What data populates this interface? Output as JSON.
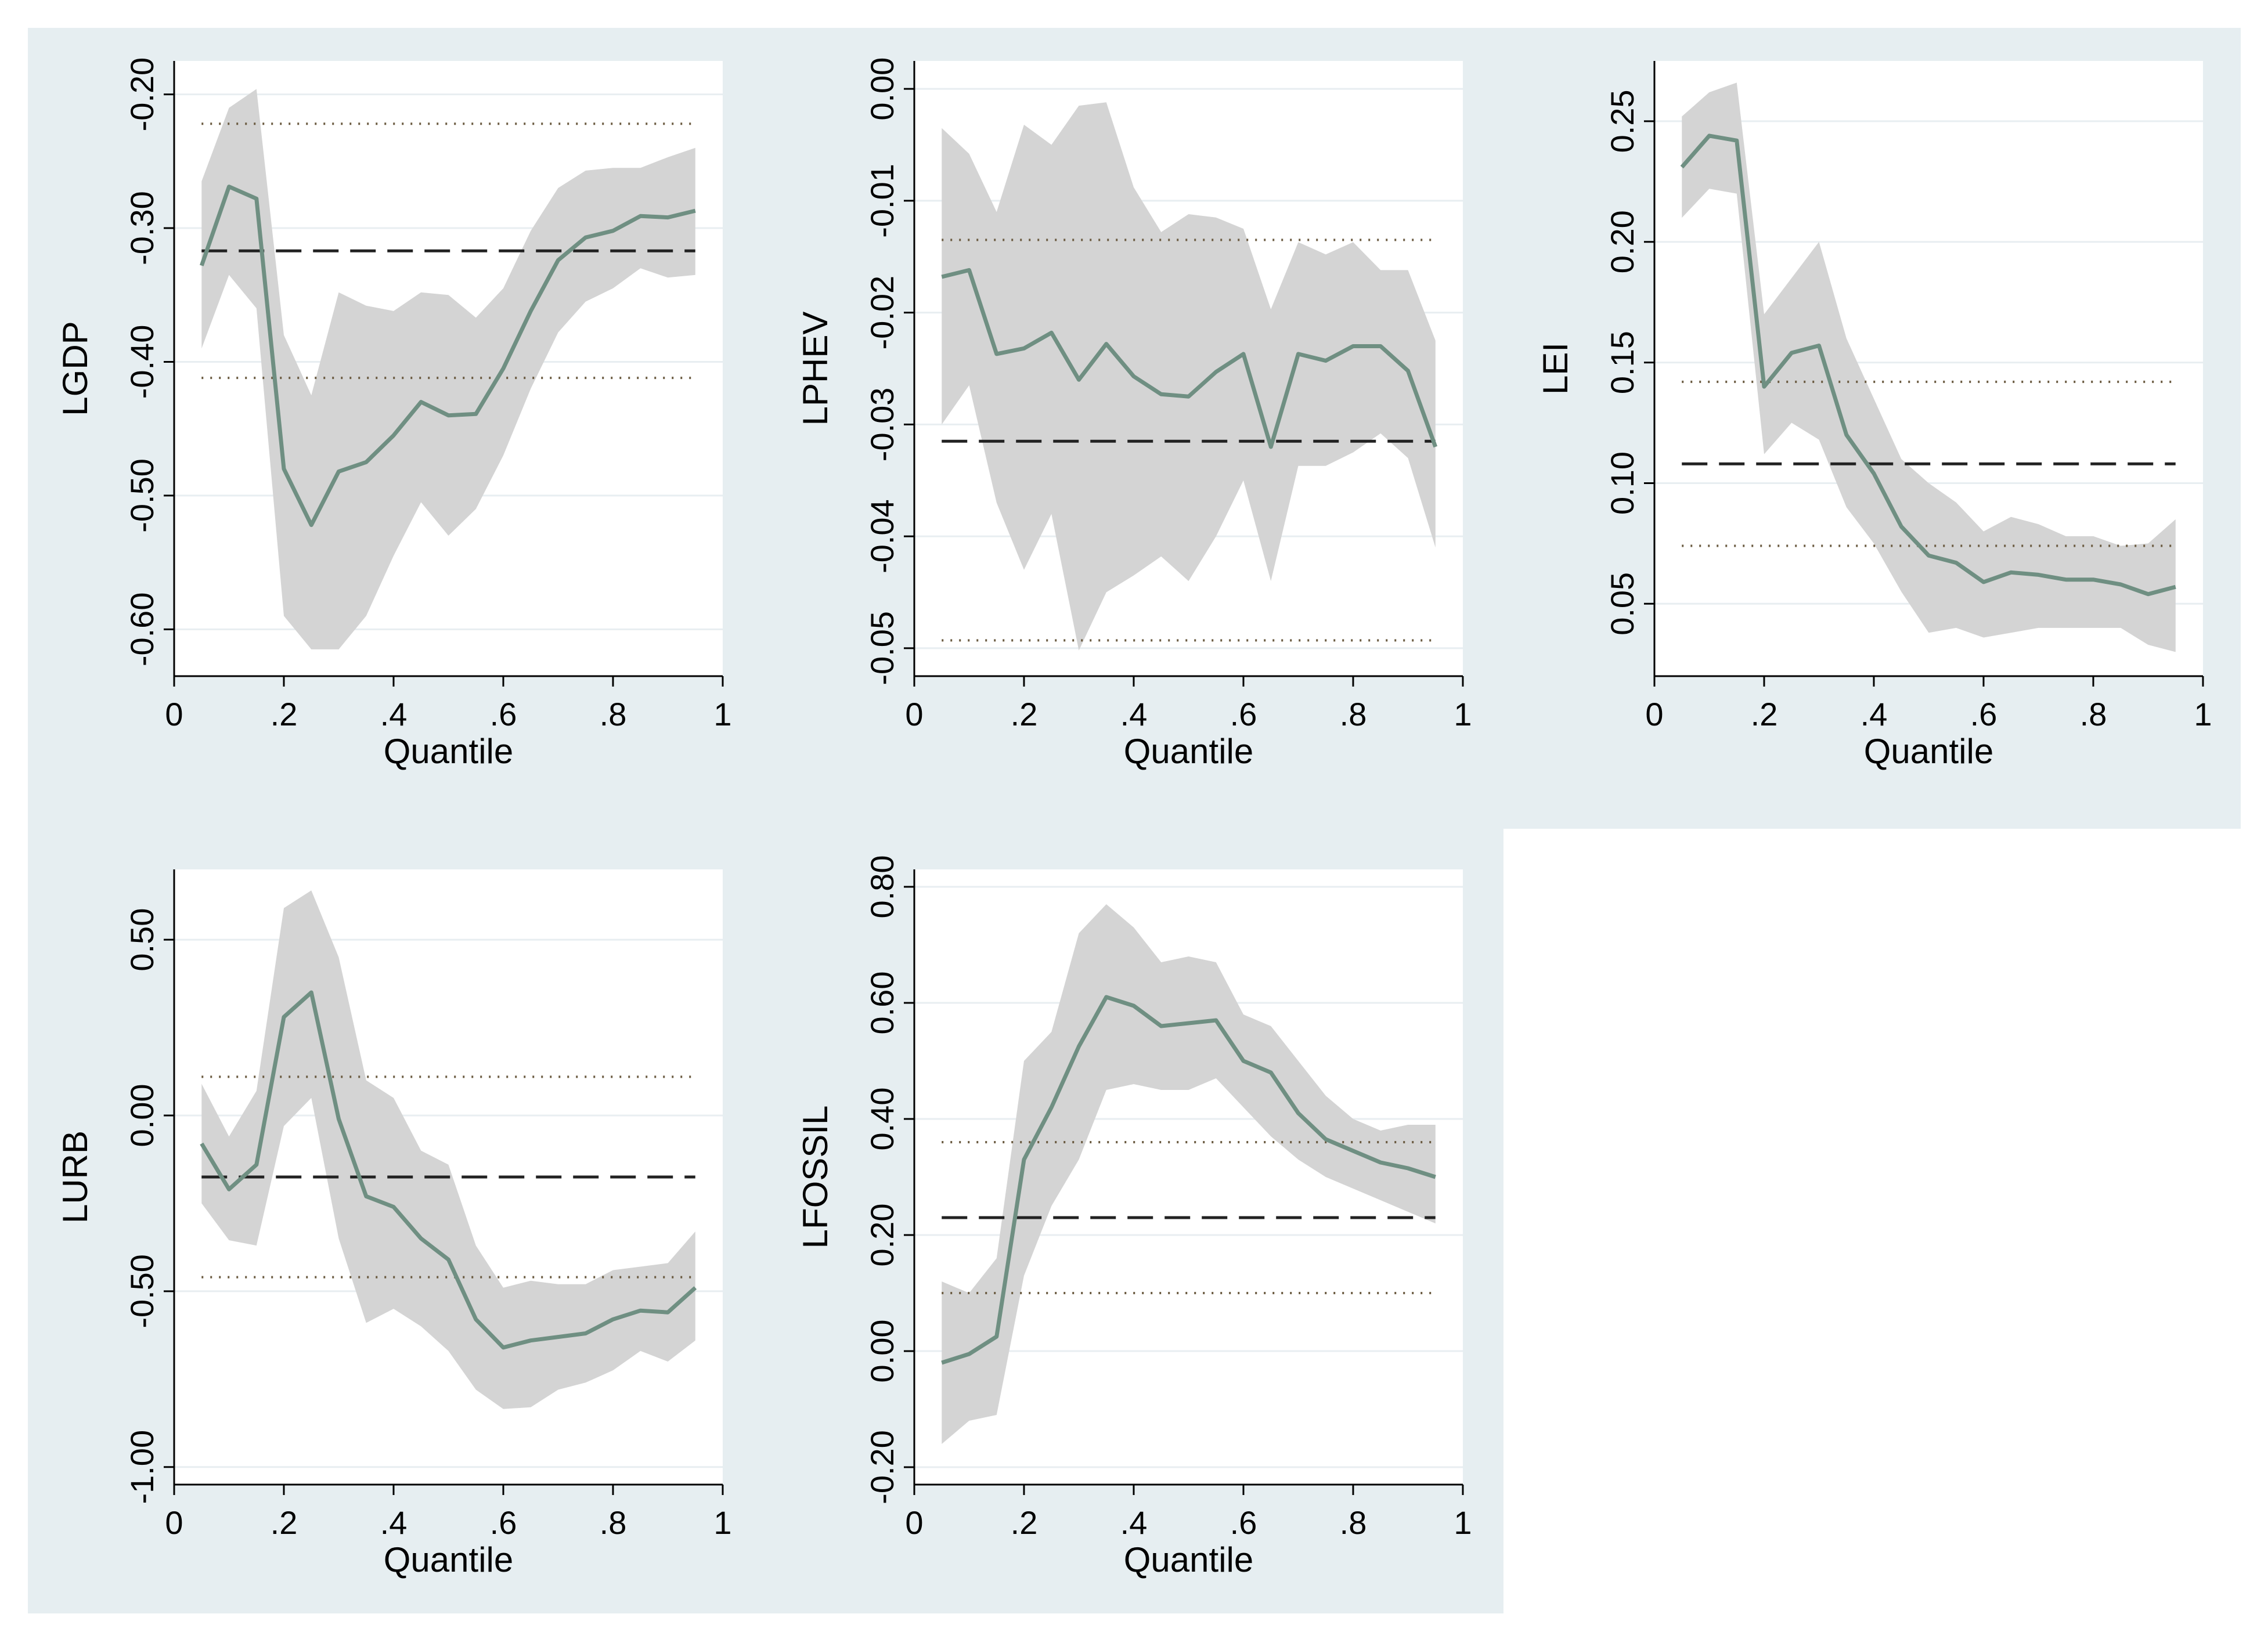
{
  "colors": {
    "panel_bg": "#e6eef1",
    "plot_bg": "#ffffff",
    "grid": "#e8eef1",
    "band": "#d4d4d4",
    "estimate_line": "#6f8f82",
    "ols_line": "#222222",
    "ols_ci": "#6a5a40",
    "axis": "#000000"
  },
  "chart_data": [
    {
      "type": "line",
      "ylabel": "LGDP",
      "xlabel": "Quantile",
      "xlim": [
        0,
        1
      ],
      "ylim": [
        -0.635,
        -0.175
      ],
      "xticks": [
        {
          "value": 0,
          "label": "0"
        },
        {
          "value": 0.2,
          "label": ".2"
        },
        {
          "value": 0.4,
          "label": ".4"
        },
        {
          "value": 0.6,
          "label": ".6"
        },
        {
          "value": 0.8,
          "label": ".8"
        },
        {
          "value": 1,
          "label": "1"
        }
      ],
      "yticks": [
        {
          "value": -0.2,
          "label": "-0.20"
        },
        {
          "value": -0.3,
          "label": "-0.30"
        },
        {
          "value": -0.4,
          "label": "-0.40"
        },
        {
          "value": -0.5,
          "label": "-0.50"
        },
        {
          "value": -0.6,
          "label": "-0.60"
        }
      ],
      "x": [
        0.05,
        0.1,
        0.15,
        0.2,
        0.25,
        0.3,
        0.35,
        0.4,
        0.45,
        0.5,
        0.55,
        0.6,
        0.65,
        0.7,
        0.75,
        0.8,
        0.85,
        0.9,
        0.95
      ],
      "estimate": [
        -0.328,
        -0.269,
        -0.278,
        -0.48,
        -0.522,
        -0.482,
        -0.475,
        -0.455,
        -0.43,
        -0.44,
        -0.439,
        -0.405,
        -0.362,
        -0.324,
        -0.307,
        -0.302,
        -0.291,
        -0.292,
        -0.287
      ],
      "ci_lower": [
        -0.39,
        -0.335,
        -0.36,
        -0.59,
        -0.615,
        -0.615,
        -0.59,
        -0.545,
        -0.505,
        -0.53,
        -0.51,
        -0.47,
        -0.42,
        -0.378,
        -0.355,
        -0.345,
        -0.33,
        -0.337,
        -0.335
      ],
      "ci_upper": [
        -0.265,
        -0.21,
        -0.196,
        -0.38,
        -0.425,
        -0.348,
        -0.358,
        -0.362,
        -0.348,
        -0.35,
        -0.367,
        -0.345,
        -0.302,
        -0.27,
        -0.257,
        -0.255,
        -0.255,
        -0.247,
        -0.24
      ],
      "ols": -0.317,
      "ols_ci": [
        -0.412,
        -0.222
      ]
    },
    {
      "type": "line",
      "ylabel": "LPHEV",
      "xlabel": "Quantile",
      "xlim": [
        0,
        1
      ],
      "ylim": [
        -0.0525,
        0.0025
      ],
      "xticks": [
        {
          "value": 0,
          "label": "0"
        },
        {
          "value": 0.2,
          "label": ".2"
        },
        {
          "value": 0.4,
          "label": ".4"
        },
        {
          "value": 0.6,
          "label": ".6"
        },
        {
          "value": 0.8,
          "label": ".8"
        },
        {
          "value": 1,
          "label": "1"
        }
      ],
      "yticks": [
        {
          "value": 0,
          "label": "0.00"
        },
        {
          "value": -0.01,
          "label": "-0.01"
        },
        {
          "value": -0.02,
          "label": "-0.02"
        },
        {
          "value": -0.03,
          "label": "-0.03"
        },
        {
          "value": -0.04,
          "label": "-0.04"
        },
        {
          "value": -0.05,
          "label": "-0.05"
        }
      ],
      "x": [
        0.05,
        0.1,
        0.15,
        0.2,
        0.25,
        0.3,
        0.35,
        0.4,
        0.45,
        0.5,
        0.55,
        0.6,
        0.65,
        0.7,
        0.75,
        0.8,
        0.85,
        0.9,
        0.95
      ],
      "estimate": [
        -0.0168,
        -0.0162,
        -0.0237,
        -0.0232,
        -0.0218,
        -0.026,
        -0.0228,
        -0.0257,
        -0.0273,
        -0.0275,
        -0.0253,
        -0.0237,
        -0.032,
        -0.0237,
        -0.0243,
        -0.023,
        -0.023,
        -0.0252,
        -0.032
      ],
      "ci_lower": [
        -0.03,
        -0.0265,
        -0.037,
        -0.043,
        -0.038,
        -0.0502,
        -0.045,
        -0.0435,
        -0.0418,
        -0.044,
        -0.04,
        -0.035,
        -0.044,
        -0.0337,
        -0.0337,
        -0.0325,
        -0.0308,
        -0.033,
        -0.041
      ],
      "ci_upper": [
        -0.0035,
        -0.0058,
        -0.011,
        -0.0032,
        -0.005,
        -0.0015,
        -0.0012,
        -0.0088,
        -0.0128,
        -0.0112,
        -0.0115,
        -0.0125,
        -0.0197,
        -0.0137,
        -0.0148,
        -0.0137,
        -0.0162,
        -0.0162,
        -0.0225
      ],
      "ols": -0.0315,
      "ols_ci": [
        -0.0493,
        -0.0135
      ]
    },
    {
      "type": "line",
      "ylabel": "LEI",
      "xlabel": "Quantile",
      "xlim": [
        0,
        1
      ],
      "ylim": [
        0.02,
        0.275
      ],
      "xticks": [
        {
          "value": 0,
          "label": "0"
        },
        {
          "value": 0.2,
          "label": ".2"
        },
        {
          "value": 0.4,
          "label": ".4"
        },
        {
          "value": 0.6,
          "label": ".6"
        },
        {
          "value": 0.8,
          "label": ".8"
        },
        {
          "value": 1,
          "label": "1"
        }
      ],
      "yticks": [
        {
          "value": 0.25,
          "label": "0.25"
        },
        {
          "value": 0.2,
          "label": "0.20"
        },
        {
          "value": 0.15,
          "label": "0.15"
        },
        {
          "value": 0.1,
          "label": "0.10"
        },
        {
          "value": 0.05,
          "label": "0.05"
        }
      ],
      "x": [
        0.05,
        0.1,
        0.15,
        0.2,
        0.25,
        0.3,
        0.35,
        0.4,
        0.45,
        0.5,
        0.55,
        0.6,
        0.65,
        0.7,
        0.75,
        0.8,
        0.85,
        0.9,
        0.95
      ],
      "estimate": [
        0.231,
        0.244,
        0.242,
        0.14,
        0.154,
        0.157,
        0.12,
        0.104,
        0.082,
        0.07,
        0.067,
        0.059,
        0.063,
        0.062,
        0.06,
        0.06,
        0.058,
        0.054,
        0.057
      ],
      "ci_lower": [
        0.21,
        0.222,
        0.22,
        0.112,
        0.125,
        0.118,
        0.09,
        0.075,
        0.055,
        0.038,
        0.04,
        0.036,
        0.038,
        0.04,
        0.04,
        0.04,
        0.04,
        0.033,
        0.03
      ],
      "ci_upper": [
        0.252,
        0.262,
        0.266,
        0.17,
        0.185,
        0.2,
        0.16,
        0.135,
        0.11,
        0.1,
        0.092,
        0.08,
        0.086,
        0.083,
        0.078,
        0.078,
        0.074,
        0.075,
        0.085
      ],
      "ols": 0.108,
      "ols_ci": [
        0.074,
        0.142
      ]
    },
    {
      "type": "line",
      "ylabel": "LURB",
      "xlabel": "Quantile",
      "xlim": [
        0,
        1
      ],
      "ylim": [
        -1.05,
        0.7
      ],
      "xticks": [
        {
          "value": 0,
          "label": "0"
        },
        {
          "value": 0.2,
          "label": ".2"
        },
        {
          "value": 0.4,
          "label": ".4"
        },
        {
          "value": 0.6,
          "label": ".6"
        },
        {
          "value": 0.8,
          "label": ".8"
        },
        {
          "value": 1,
          "label": "1"
        }
      ],
      "yticks": [
        {
          "value": 0.5,
          "label": "0.50"
        },
        {
          "value": 0,
          "label": "0.00"
        },
        {
          "value": -0.5,
          "label": "-0.50"
        },
        {
          "value": -1,
          "label": "-1.00"
        }
      ],
      "x": [
        0.05,
        0.1,
        0.15,
        0.2,
        0.25,
        0.3,
        0.35,
        0.4,
        0.45,
        0.5,
        0.55,
        0.6,
        0.65,
        0.7,
        0.75,
        0.8,
        0.85,
        0.9,
        0.95
      ],
      "estimate": [
        -0.08,
        -0.21,
        -0.14,
        0.28,
        0.35,
        -0.01,
        -0.23,
        -0.26,
        -0.35,
        -0.41,
        -0.58,
        -0.66,
        -0.64,
        -0.63,
        -0.62,
        -0.58,
        -0.555,
        -0.56,
        -0.49
      ],
      "ci_lower": [
        -0.25,
        -0.355,
        -0.37,
        -0.03,
        0.05,
        -0.35,
        -0.59,
        -0.55,
        -0.6,
        -0.67,
        -0.78,
        -0.835,
        -0.83,
        -0.78,
        -0.76,
        -0.725,
        -0.67,
        -0.7,
        -0.64
      ],
      "ci_upper": [
        0.09,
        -0.06,
        0.07,
        0.59,
        0.64,
        0.45,
        0.1,
        0.05,
        -0.1,
        -0.14,
        -0.37,
        -0.49,
        -0.47,
        -0.48,
        -0.48,
        -0.44,
        -0.43,
        -0.42,
        -0.33
      ],
      "ols": -0.175,
      "ols_ci": [
        -0.46,
        0.11
      ]
    },
    {
      "type": "line",
      "ylabel": "LFOSSIL",
      "xlabel": "Quantile",
      "xlim": [
        0,
        1
      ],
      "ylim": [
        -0.23,
        0.83
      ],
      "xticks": [
        {
          "value": 0,
          "label": "0"
        },
        {
          "value": 0.2,
          "label": ".2"
        },
        {
          "value": 0.4,
          "label": ".4"
        },
        {
          "value": 0.6,
          "label": ".6"
        },
        {
          "value": 0.8,
          "label": ".8"
        },
        {
          "value": 1,
          "label": "1"
        }
      ],
      "yticks": [
        {
          "value": 0.8,
          "label": "0.80"
        },
        {
          "value": 0.6,
          "label": "0.60"
        },
        {
          "value": 0.4,
          "label": "0.40"
        },
        {
          "value": 0.2,
          "label": "0.20"
        },
        {
          "value": 0,
          "label": "0.00"
        },
        {
          "value": -0.2,
          "label": "-0.20"
        }
      ],
      "x": [
        0.05,
        0.1,
        0.15,
        0.2,
        0.25,
        0.3,
        0.35,
        0.4,
        0.45,
        0.5,
        0.55,
        0.6,
        0.65,
        0.7,
        0.75,
        0.8,
        0.85,
        0.9,
        0.95
      ],
      "estimate": [
        -0.02,
        -0.005,
        0.025,
        0.33,
        0.42,
        0.525,
        0.61,
        0.595,
        0.56,
        0.565,
        0.57,
        0.5,
        0.48,
        0.41,
        0.365,
        0.345,
        0.325,
        0.315,
        0.3
      ],
      "ci_lower": [
        -0.16,
        -0.12,
        -0.11,
        0.13,
        0.25,
        0.33,
        0.45,
        0.46,
        0.45,
        0.45,
        0.47,
        0.42,
        0.37,
        0.33,
        0.3,
        0.28,
        0.26,
        0.24,
        0.22
      ],
      "ci_upper": [
        0.12,
        0.1,
        0.16,
        0.5,
        0.55,
        0.72,
        0.77,
        0.73,
        0.67,
        0.68,
        0.67,
        0.58,
        0.56,
        0.5,
        0.44,
        0.4,
        0.38,
        0.39,
        0.39
      ],
      "ols": 0.23,
      "ols_ci": [
        0.1,
        0.36
      ]
    }
  ]
}
